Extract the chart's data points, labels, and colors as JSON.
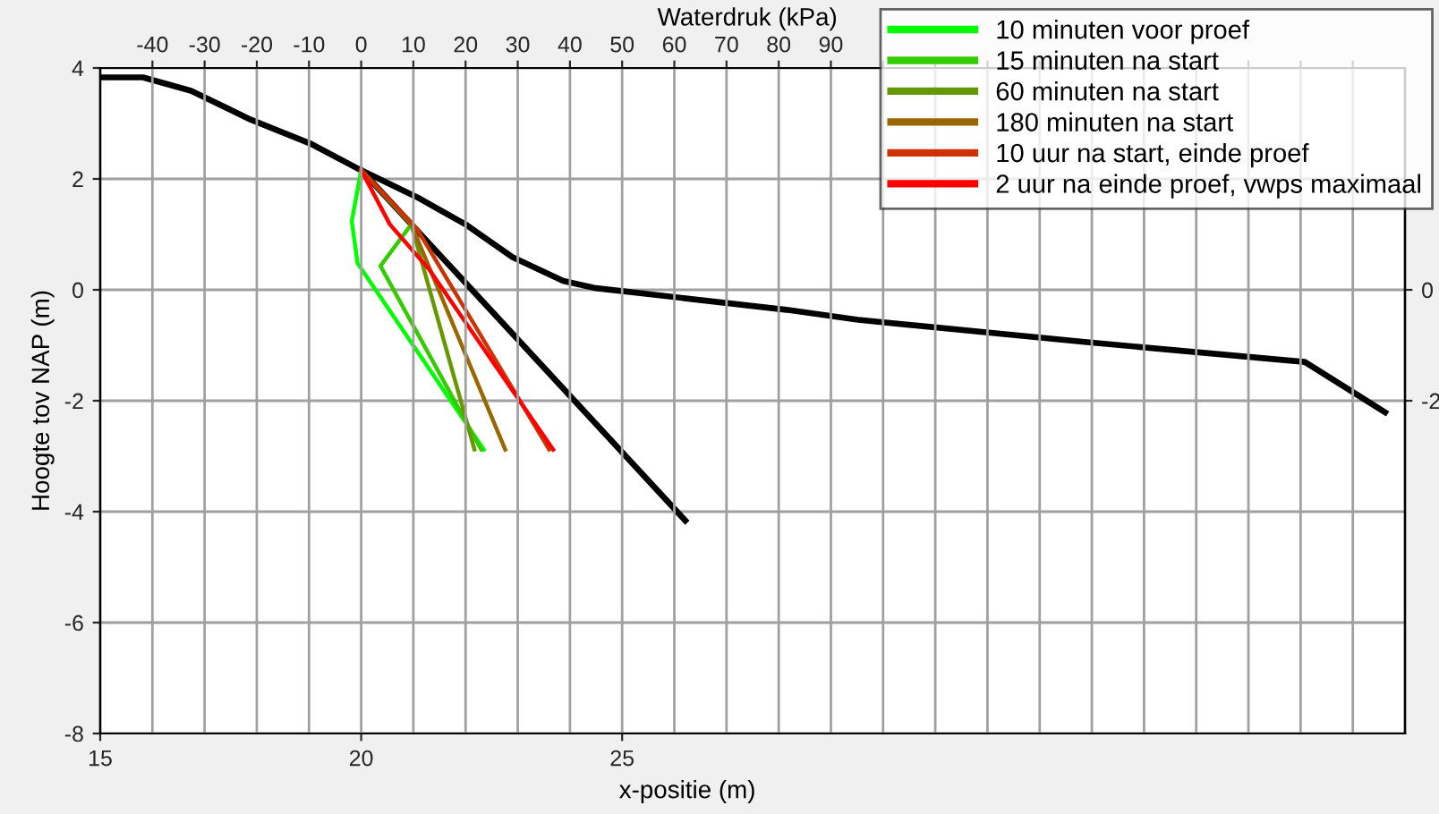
{
  "chart_data": [
    {
      "type": "line",
      "xlabel": "x-positie (m)",
      "ylabel": "Hoogte tov NAP (m)",
      "x2label": "Waterdruk (kPa)",
      "xlim": [
        15,
        40
      ],
      "xticks": [
        15,
        20,
        25
      ],
      "ylim": [
        -8,
        4
      ],
      "yticks": [
        -8,
        -6,
        -4,
        -2,
        0,
        2,
        4
      ],
      "y2lim": [
        -8,
        4
      ],
      "y2ticks": [
        -2,
        0
      ],
      "x2lim": [
        -50,
        200
      ],
      "x2ticks": [
        -40,
        -30,
        -20,
        -10,
        0,
        10,
        20,
        30,
        40,
        50,
        60,
        70,
        80,
        90,
        {
          "value": 100,
          "label": null
        },
        {
          "value": 110,
          "label": null
        },
        {
          "value": 120,
          "label": null
        },
        {
          "value": 130,
          "label": null
        },
        {
          "value": 140,
          "label": null
        },
        {
          "value": 150,
          "label": null
        },
        {
          "value": 160,
          "label": null
        },
        {
          "value": 170,
          "label": null
        },
        {
          "value": 180,
          "label": null
        },
        {
          "value": 190,
          "label": null
        }
      ],
      "grid": true,
      "legend": "top right",
      "series": [
        {
          "color": "#000000",
          "x": [
            15,
            15.82,
            16.74,
            17.88,
            19.02,
            19.99,
            21.07,
            22.0,
            22.9,
            23.87,
            24.5,
            28.15,
            29.52,
            33.86,
            38.08,
            39.62
          ],
          "values": [
            3.83,
            3.83,
            3.59,
            3.07,
            2.64,
            2.16,
            1.67,
            1.18,
            0.59,
            0.16,
            0.03,
            -0.36,
            -0.54,
            -0.94,
            -1.3,
            -2.21
          ]
        },
        {
          "color": "#000000",
          "x": [
            20,
            26.21
          ],
          "values": [
            2.16,
            -4.16
          ]
        },
        {
          "name": "10 minuten voor proef",
          "color": "#00ff00",
          "x": [
            20,
            19.82,
            19.93,
            22.35
          ],
          "values": [
            2.16,
            1.24,
            0.48,
            -2.88
          ]
        },
        {
          "name": "15 minuten na start",
          "color": "#33cc00",
          "x": [
            20,
            20.96,
            20.37,
            22.3
          ],
          "values": [
            2.16,
            1.18,
            0.43,
            -2.88
          ]
        },
        {
          "name": "60 minuten na start",
          "color": "#669900",
          "x": [
            20,
            20.96,
            22.17
          ],
          "values": [
            2.16,
            1.18,
            -2.88
          ]
        },
        {
          "name": "180 minuten na start",
          "color": "#996600",
          "x": [
            20,
            20.96,
            22.76
          ],
          "values": [
            2.16,
            1.18,
            -2.88
          ]
        },
        {
          "name": "10 uur na start, einde proef",
          "color": "#cc3300",
          "x": [
            20,
            21.07,
            23.6
          ],
          "values": [
            2.16,
            1.1,
            -2.88
          ]
        },
        {
          "name": "2 uur na einde proef, vwps maximaal",
          "color": "#ff0000",
          "x": [
            20,
            20.55,
            21.3,
            23.68
          ],
          "values": [
            2.16,
            1.18,
            0.37,
            -2.88
          ]
        }
      ]
    }
  ]
}
